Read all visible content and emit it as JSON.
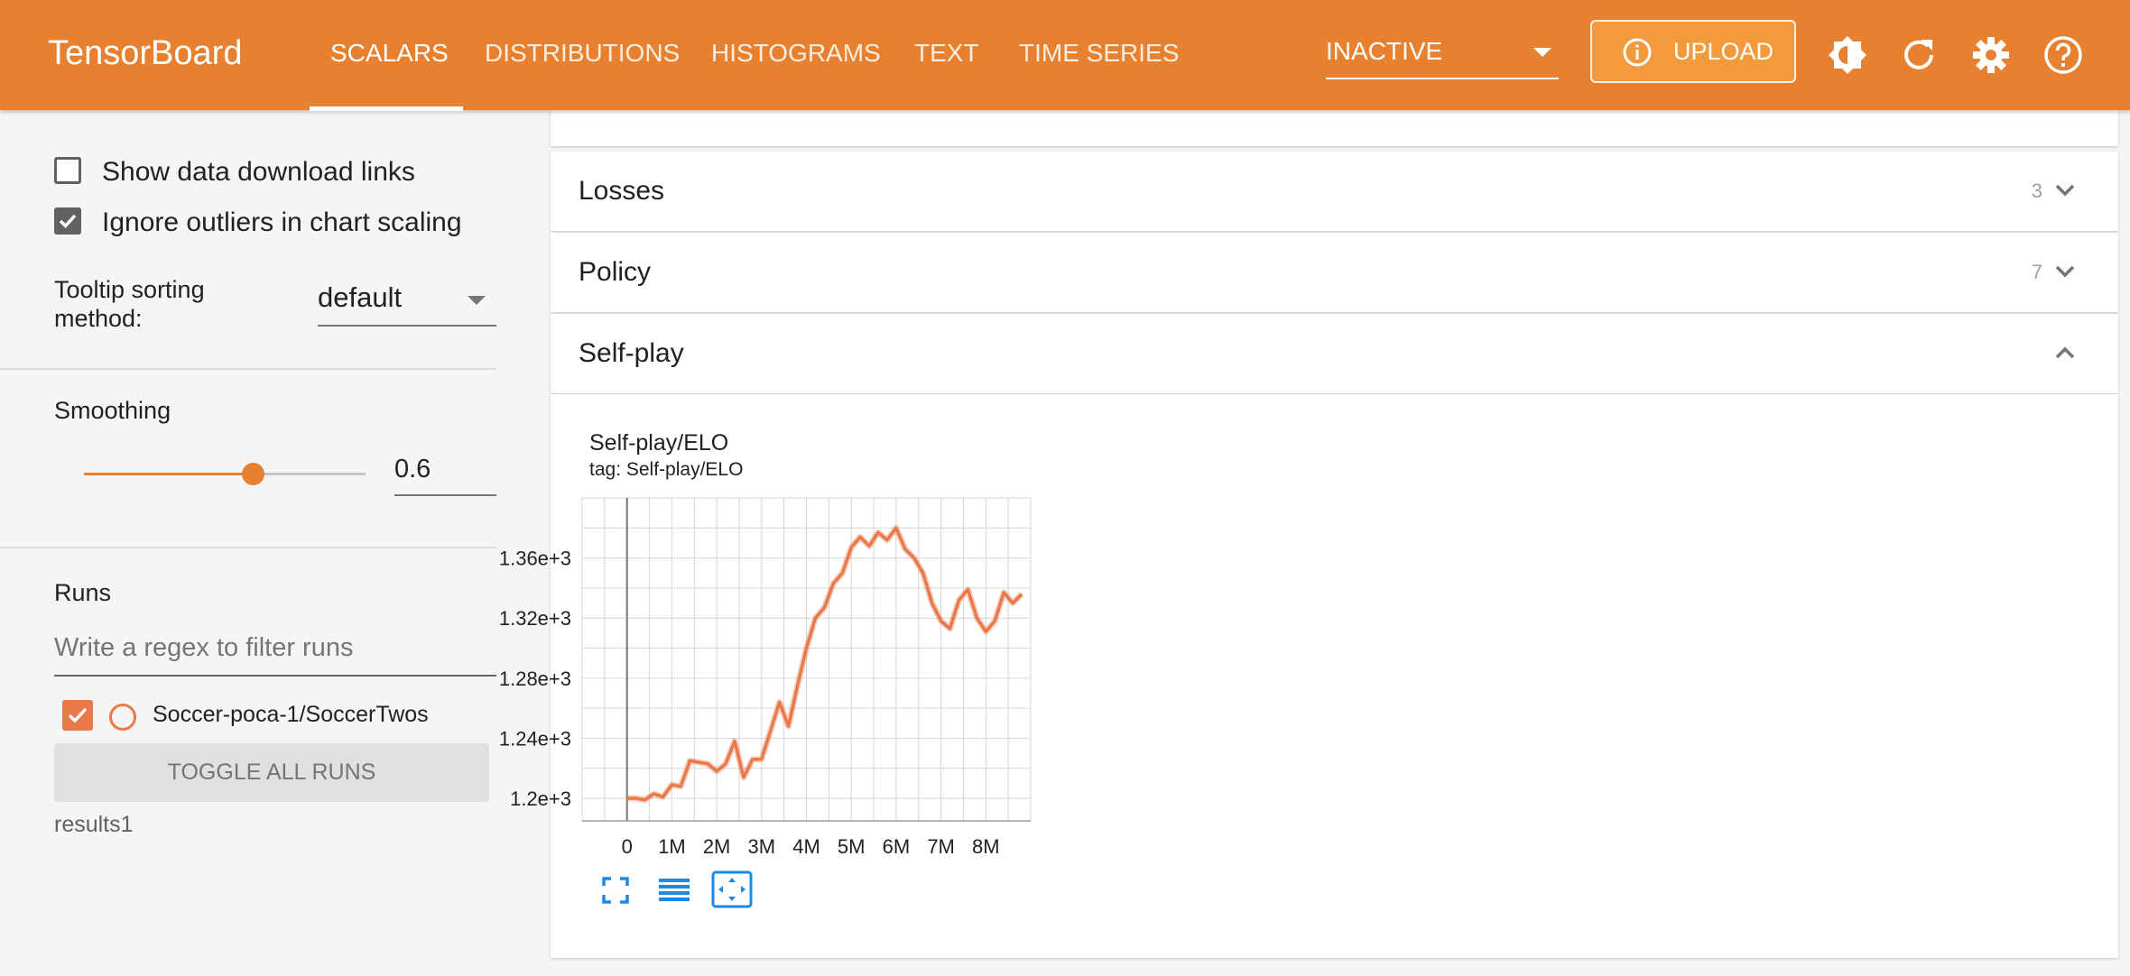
{
  "app": {
    "title": "TensorBoard"
  },
  "nav": {
    "tabs": [
      {
        "label": "SCALARS",
        "active": true
      },
      {
        "label": "DISTRIBUTIONS",
        "active": false
      },
      {
        "label": "HISTOGRAMS",
        "active": false
      },
      {
        "label": "TEXT",
        "active": false
      },
      {
        "label": "TIME SERIES",
        "active": false
      }
    ],
    "status_select": "INACTIVE",
    "upload_label": "UPLOAD",
    "icons": [
      "brightness-icon",
      "refresh-icon",
      "settings-icon",
      "help-icon"
    ]
  },
  "sidebar": {
    "show_download_links": {
      "label": "Show data download links",
      "checked": false
    },
    "ignore_outliers": {
      "label": "Ignore outliers in chart scaling",
      "checked": true
    },
    "tooltip_sort": {
      "label_line1": "Tooltip sorting",
      "label_line2": "method:",
      "value": "default"
    },
    "smoothing": {
      "label": "Smoothing",
      "value": "0.6",
      "fraction": 0.6
    },
    "runs": {
      "label": "Runs",
      "filter_placeholder": "Write a regex to filter runs",
      "items": [
        {
          "name": "Soccer-poca-1/SoccerTwos",
          "checked": true,
          "color": "#e8794a"
        }
      ],
      "toggle_label": "TOGGLE ALL RUNS",
      "footer": "results1"
    }
  },
  "groups": [
    {
      "name": "Losses",
      "count": "3",
      "expanded": false
    },
    {
      "name": "Policy",
      "count": "7",
      "expanded": false
    },
    {
      "name": "Self-play",
      "count": "",
      "expanded": true
    }
  ],
  "colors": {
    "accent": "#e8812f",
    "series": "#e8794a",
    "icon_blue": "#1e88e5"
  },
  "chart": {
    "title": "Self-play/ELO",
    "tag": "tag: Self-play/ELO"
  },
  "chart_data": {
    "type": "line",
    "title": "Self-play/ELO",
    "subtitle": "tag: Self-play/ELO",
    "xlabel": "",
    "ylabel": "",
    "x_tick_labels": [
      "0",
      "1M",
      "2M",
      "3M",
      "4M",
      "5M",
      "6M",
      "7M",
      "8M"
    ],
    "x_tick_values": [
      0,
      1000000,
      2000000,
      3000000,
      4000000,
      5000000,
      6000000,
      7000000,
      8000000
    ],
    "y_tick_labels": [
      "1.2e+3",
      "1.24e+3",
      "1.28e+3",
      "1.32e+3",
      "1.36e+3"
    ],
    "y_tick_values": [
      1200,
      1240,
      1280,
      1320,
      1360
    ],
    "xlim": [
      -1000000,
      9000000
    ],
    "ylim": [
      1185,
      1400
    ],
    "grid": true,
    "series": [
      {
        "color": "#e8794a",
        "x": [
          0,
          200000,
          400000,
          600000,
          800000,
          1000000,
          1200000,
          1400000,
          1600000,
          1800000,
          2000000,
          2200000,
          2400000,
          2600000,
          2800000,
          3000000,
          3200000,
          3400000,
          3600000,
          3800000,
          4000000,
          4200000,
          4400000,
          4600000,
          4800000,
          5000000,
          5200000,
          5400000,
          5600000,
          5800000,
          6000000,
          6200000,
          6400000,
          6600000,
          6800000,
          7000000,
          7200000,
          7400000,
          7600000,
          7800000,
          8000000,
          8200000,
          8400000,
          8600000,
          8800000
        ],
        "y": [
          1200,
          1200,
          1199,
          1203,
          1201,
          1209,
          1208,
          1225,
          1224,
          1223,
          1218,
          1223,
          1238,
          1214,
          1226,
          1226,
          1245,
          1264,
          1248,
          1275,
          1300,
          1320,
          1327,
          1343,
          1350,
          1367,
          1374,
          1368,
          1377,
          1372,
          1380,
          1366,
          1360,
          1350,
          1330,
          1318,
          1313,
          1332,
          1339,
          1320,
          1311,
          1318,
          1337,
          1330,
          1336
        ]
      }
    ]
  }
}
